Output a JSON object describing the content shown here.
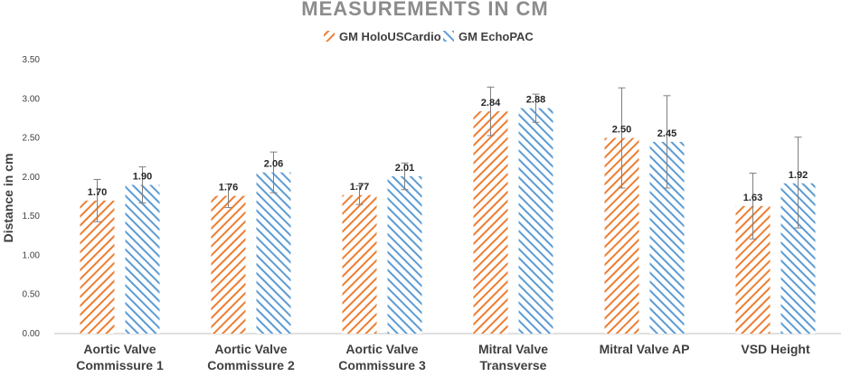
{
  "chart_data": {
    "type": "bar",
    "title": "MEASUREMENTS IN CM",
    "xlabel": "",
    "ylabel": "Distance in cm",
    "ylim": [
      0,
      3.5
    ],
    "yticks": [
      "0.00",
      "0.50",
      "1.00",
      "1.50",
      "2.00",
      "2.50",
      "3.00",
      "3.50"
    ],
    "grid": false,
    "legend_position": "top-center",
    "categories": [
      [
        "Aortic Valve",
        "Commissure 1"
      ],
      [
        "Aortic Valve",
        "Commissure 2"
      ],
      [
        "Aortic Valve",
        "Commissure 3"
      ],
      [
        "Mitral Valve",
        "Transverse"
      ],
      [
        "Mitral Valve AP"
      ],
      [
        "VSD Height"
      ]
    ],
    "series": [
      {
        "name": "GM HoloUSCardio",
        "color": "#ed7d31",
        "pattern": "diagonal-hatch",
        "values": [
          1.7,
          1.76,
          1.77,
          2.84,
          2.5,
          1.63
        ],
        "labels": [
          "1.70",
          "1.76",
          "1.77",
          "2.84",
          "2.50",
          "1.63"
        ],
        "error_low": [
          1.43,
          1.61,
          1.65,
          2.53,
          1.86,
          1.21
        ],
        "error_high": [
          1.97,
          1.91,
          1.89,
          3.15,
          3.14,
          2.05
        ]
      },
      {
        "name": "GM EchoPAC",
        "color": "#5b9bd5",
        "pattern": "diagonal-hatch",
        "values": [
          1.9,
          2.06,
          2.01,
          2.88,
          2.45,
          1.92
        ],
        "labels": [
          "1.90",
          "2.06",
          "2.01",
          "2.88",
          "2.45",
          "1.92"
        ],
        "error_low": [
          1.67,
          1.8,
          1.84,
          2.7,
          1.86,
          1.35
        ],
        "error_high": [
          2.13,
          2.32,
          2.18,
          3.06,
          3.04,
          2.51
        ]
      }
    ]
  }
}
